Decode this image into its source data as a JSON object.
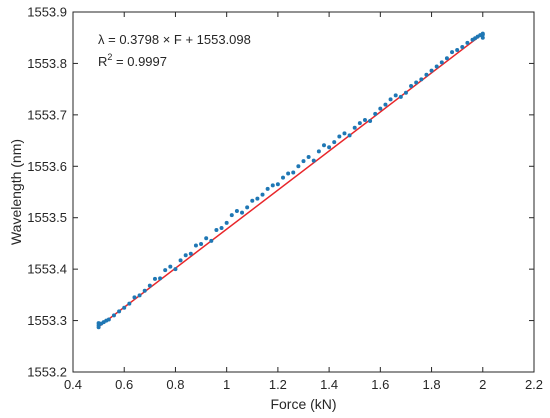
{
  "chart_data": {
    "type": "scatter",
    "xlabel": "Force (kN)",
    "ylabel": "Wavelength (nm)",
    "xlim": [
      0.4,
      2.2
    ],
    "ylim": [
      1553.2,
      1553.9
    ],
    "x_ticks": [
      0.4,
      0.6,
      0.8,
      1,
      1.2,
      1.4,
      1.6,
      1.8,
      2,
      2.2
    ],
    "x_tick_labels": [
      "0.4",
      "0.6",
      "0.8",
      "1",
      "1.2",
      "1.4",
      "1.6",
      "1.8",
      "2",
      "2.2"
    ],
    "y_ticks": [
      1553.2,
      1553.3,
      1553.4,
      1553.5,
      1553.6,
      1553.7,
      1553.8,
      1553.9
    ],
    "y_tick_labels": [
      "1553.2",
      "1553.3",
      "1553.4",
      "1553.5",
      "1553.6",
      "1553.7",
      "1553.8",
      "1553.9"
    ],
    "grid": false,
    "box": true,
    "annotation": {
      "line1": "λ = 0.3798 × F + 1553.098",
      "r2_prefix": "R",
      "r2_sup": "2",
      "r2_value": " = 0.9997"
    },
    "fit": {
      "slope": 0.3798,
      "intercept": 1553.098,
      "x_range": [
        0.5,
        2.0
      ],
      "color": "#e8262a"
    },
    "series": [
      {
        "color": "#1f77b4",
        "x": [
          0.5,
          0.5,
          0.5,
          0.51,
          0.52,
          0.53,
          0.54,
          0.56,
          0.58,
          0.6,
          0.62,
          0.64,
          0.66,
          0.68,
          0.7,
          0.72,
          0.74,
          0.76,
          0.78,
          0.8,
          0.82,
          0.84,
          0.86,
          0.88,
          0.9,
          0.92,
          0.94,
          0.96,
          0.98,
          1.0,
          1.02,
          1.04,
          1.06,
          1.08,
          1.1,
          1.12,
          1.14,
          1.16,
          1.18,
          1.2,
          1.22,
          1.24,
          1.26,
          1.28,
          1.3,
          1.32,
          1.34,
          1.36,
          1.38,
          1.4,
          1.42,
          1.44,
          1.46,
          1.48,
          1.5,
          1.52,
          1.54,
          1.56,
          1.58,
          1.6,
          1.62,
          1.64,
          1.66,
          1.68,
          1.7,
          1.72,
          1.74,
          1.76,
          1.78,
          1.8,
          1.82,
          1.84,
          1.86,
          1.88,
          1.9,
          1.92,
          1.94,
          1.96,
          1.97,
          1.98,
          1.99,
          2.0,
          2.0,
          2.0
        ],
        "y": [
          1553.287,
          1553.291,
          1553.295,
          1553.294,
          1553.297,
          1553.3,
          1553.302,
          1553.31,
          1553.318,
          1553.325,
          1553.333,
          1553.345,
          1553.349,
          1553.358,
          1553.368,
          1553.381,
          1553.382,
          1553.398,
          1553.405,
          1553.4,
          1553.417,
          1553.427,
          1553.43,
          1553.446,
          1553.449,
          1553.46,
          1553.455,
          1553.476,
          1553.48,
          1553.49,
          1553.505,
          1553.513,
          1553.51,
          1553.52,
          1553.533,
          1553.537,
          1553.545,
          1553.556,
          1553.563,
          1553.565,
          1553.578,
          1553.586,
          1553.588,
          1553.6,
          1553.61,
          1553.618,
          1553.611,
          1553.629,
          1553.641,
          1553.637,
          1553.647,
          1553.658,
          1553.664,
          1553.66,
          1553.675,
          1553.684,
          1553.69,
          1553.688,
          1553.702,
          1553.712,
          1553.72,
          1553.73,
          1553.738,
          1553.735,
          1553.743,
          1553.756,
          1553.763,
          1553.769,
          1553.778,
          1553.786,
          1553.794,
          1553.802,
          1553.81,
          1553.822,
          1553.826,
          1553.832,
          1553.84,
          1553.846,
          1553.849,
          1553.852,
          1553.855,
          1553.85,
          1553.856,
          1553.858
        ]
      }
    ]
  }
}
